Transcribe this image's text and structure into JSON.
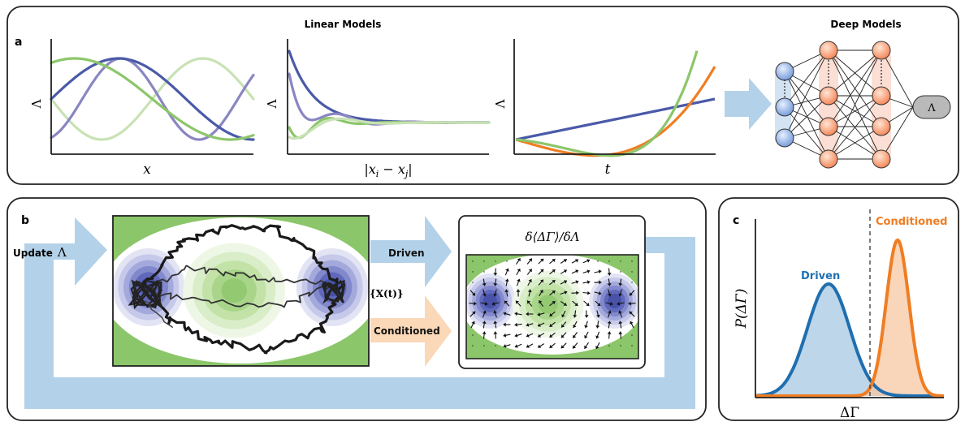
{
  "panel_a": {
    "letter": "a",
    "linear_title": "Linear Models",
    "deep_title": "Deep Models",
    "plot1": {
      "ylabel": "Λ",
      "xlabel": "x"
    },
    "plot2": {
      "ylabel": "Λ",
      "xlabel": "|x",
      "xlabel_sub_i": "i",
      "xlabel_mid": " − x",
      "xlabel_sub_j": "j",
      "xlabel_end": "|"
    },
    "plot3": {
      "ylabel": "Λ",
      "xlabel": "t"
    },
    "network_output": "Λ"
  },
  "panel_b": {
    "letter": "b",
    "update_word": "Update",
    "update_symbol": "Λ",
    "driven_label": "Driven",
    "conditioned_label": "Conditioned",
    "trajectory_label": "{X(t)}",
    "gradient_title": "δ⟨ΔΓ⟩/δΛ"
  },
  "panel_c": {
    "letter": "c",
    "ylabel": "P(ΔΓ)",
    "xlabel": "ΔΓ",
    "driven_label": "Driven",
    "conditioned_label": "Conditioned"
  },
  "colors": {
    "blue_dark": "#4a5aa8",
    "blue_mid": "#8a86c2",
    "green": "#8cc66a",
    "green_light": "#c8e2b4",
    "orange": "#f07d22",
    "arrow_blue": "#b3d2e9",
    "arrow_orange": "#fad8b8",
    "driven_blue": "#1f6fb0"
  }
}
